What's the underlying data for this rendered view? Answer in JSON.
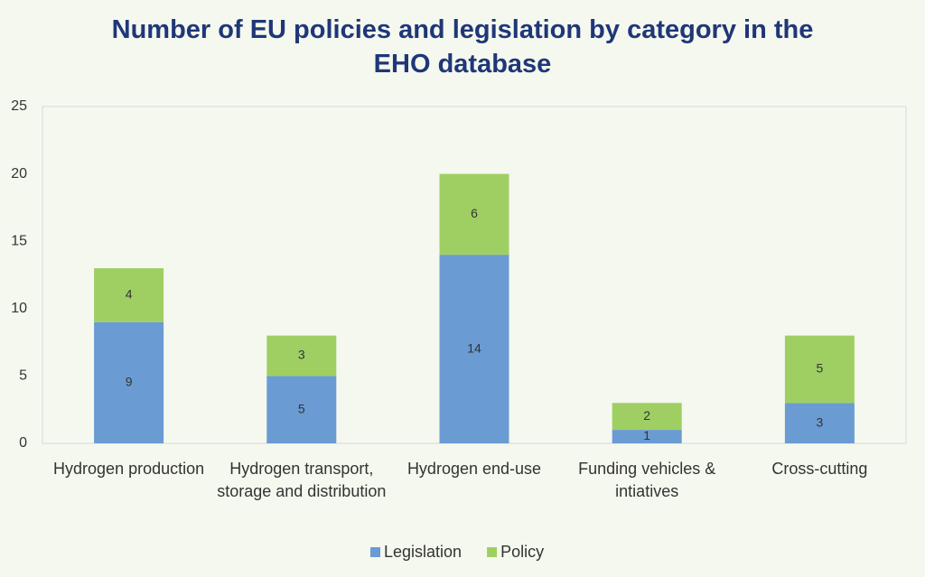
{
  "chart_data": {
    "type": "bar",
    "stacked": true,
    "title": "Number of EU policies and legislation by category in the EHO database",
    "categories": [
      "Hydrogen production",
      "Hydrogen transport, storage and distribution",
      "Hydrogen end-use",
      "Funding vehicles & intiatives",
      "Cross-cutting"
    ],
    "series": [
      {
        "name": "Legislation",
        "color": "#6a9bd3",
        "values": [
          9,
          5,
          14,
          1,
          3
        ]
      },
      {
        "name": "Policy",
        "color": "#9fcf63",
        "values": [
          4,
          3,
          6,
          2,
          5
        ]
      }
    ],
    "ylim": [
      0,
      25
    ],
    "yticks": [
      0,
      5,
      10,
      15,
      20,
      25
    ],
    "grid": false,
    "legend": "bottom"
  }
}
